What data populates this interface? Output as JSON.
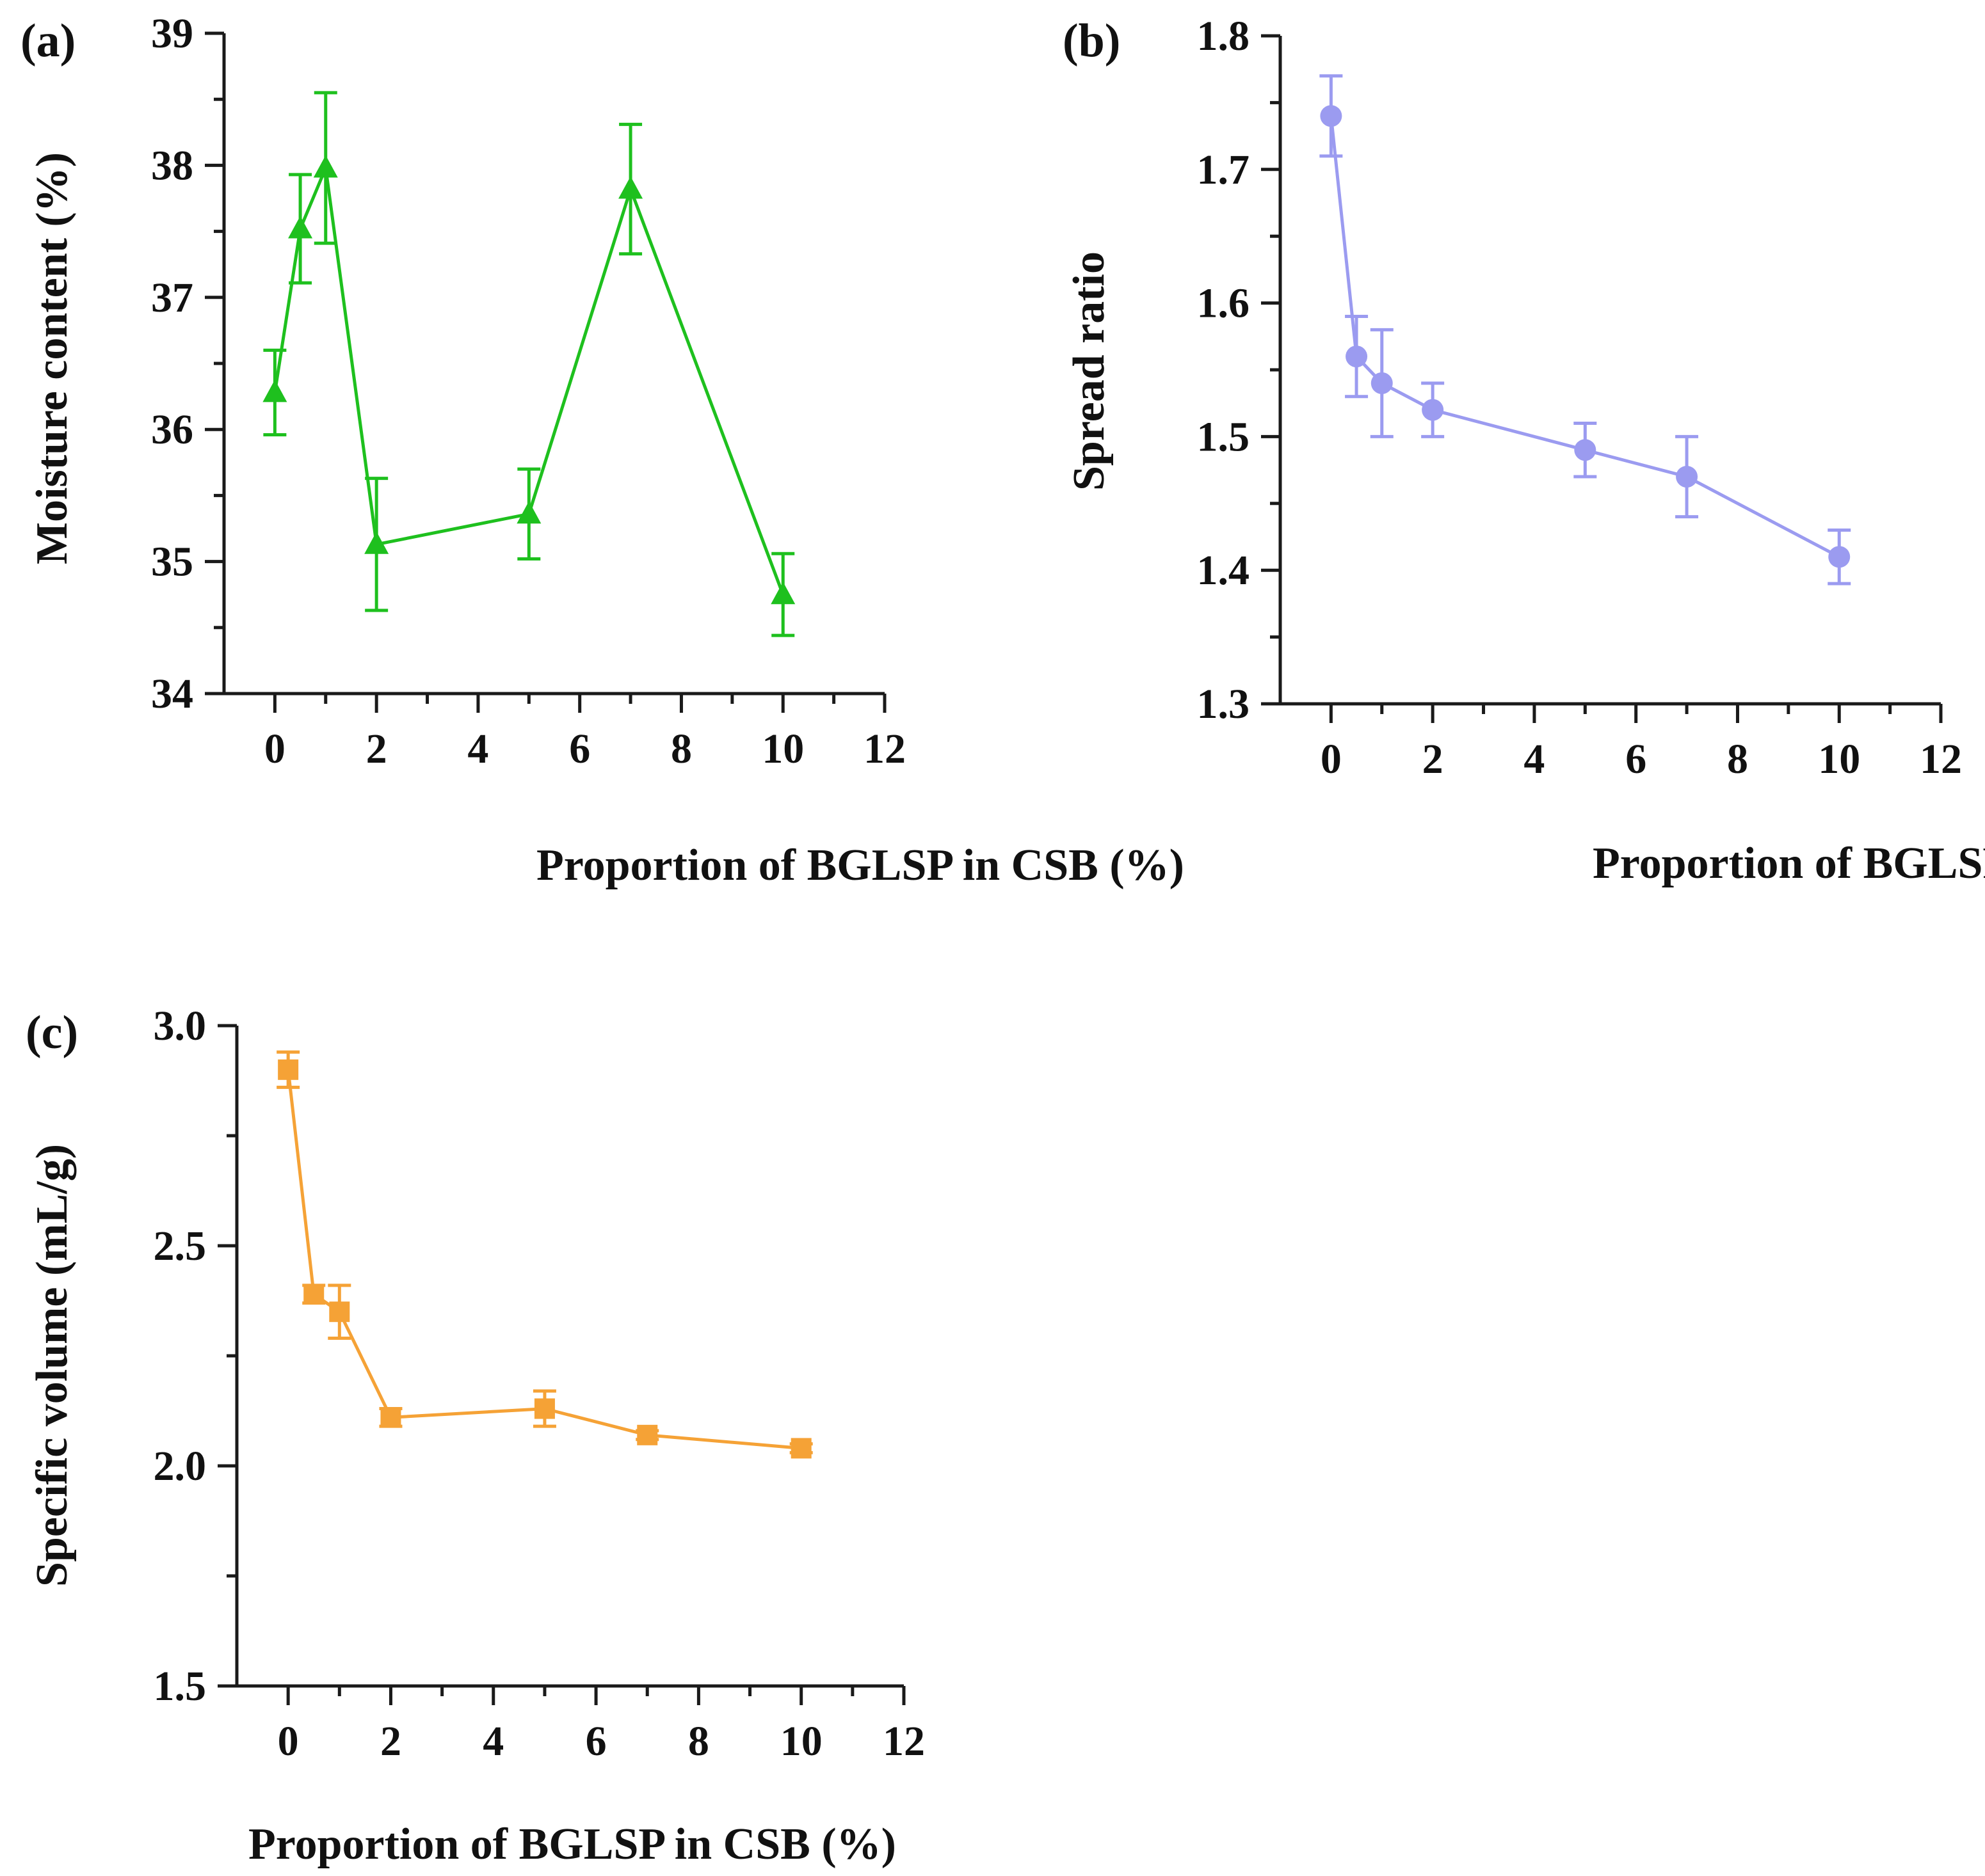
{
  "figure": {
    "panels": [
      {
        "label": "(a)"
      },
      {
        "label": "(b)"
      },
      {
        "label": "(c)"
      }
    ]
  },
  "chart_data": [
    {
      "id": "a",
      "type": "line",
      "panel_label": "(a)",
      "title": "",
      "xlabel": "Proportion of BGLSP in CSB (%)",
      "ylabel": "Moisture content (%)",
      "xlim": [
        -1,
        12
      ],
      "ylim": [
        34,
        39
      ],
      "xticks": [
        0,
        2,
        4,
        6,
        8,
        10,
        12
      ],
      "yticks": [
        34,
        35,
        36,
        37,
        38,
        39
      ],
      "xtick_labels": [
        "0",
        "2",
        "4",
        "6",
        "8",
        "10",
        "12"
      ],
      "ytick_labels": [
        "34",
        "35",
        "36",
        "37",
        "38",
        "39"
      ],
      "y_minor_step": 0.5,
      "marker": "triangle",
      "color": "#1ec01e",
      "series": [
        {
          "name": "Moisture content",
          "x": [
            0,
            0.5,
            1,
            2,
            5,
            7,
            10
          ],
          "values": [
            36.28,
            37.52,
            37.98,
            35.13,
            35.36,
            37.82,
            34.75
          ],
          "error": [
            0.32,
            0.41,
            0.57,
            0.5,
            0.34,
            0.49,
            0.31
          ]
        }
      ]
    },
    {
      "id": "b",
      "type": "line",
      "panel_label": "(b)",
      "title": "",
      "xlabel": "Proportion of BGLSP in CSB (%)",
      "ylabel": "Spread ratio",
      "xlim": [
        -1,
        12
      ],
      "ylim": [
        1.3,
        1.8
      ],
      "xticks": [
        0,
        2,
        4,
        6,
        8,
        10,
        12
      ],
      "yticks": [
        1.3,
        1.4,
        1.5,
        1.6,
        1.7,
        1.8
      ],
      "xtick_labels": [
        "0",
        "2",
        "4",
        "6",
        "8",
        "10",
        "12"
      ],
      "ytick_labels": [
        "1.3",
        "1.4",
        "1.5",
        "1.6",
        "1.7",
        "1.8"
      ],
      "y_minor_step": 0.05,
      "marker": "circle",
      "color": "#9b9bf0",
      "series": [
        {
          "name": "Spread ratio",
          "x": [
            0,
            0.5,
            1,
            2,
            5,
            7,
            10
          ],
          "values": [
            1.74,
            1.56,
            1.54,
            1.52,
            1.49,
            1.47,
            1.41
          ],
          "error": [
            0.03,
            0.03,
            0.04,
            0.02,
            0.02,
            0.03,
            0.02
          ]
        }
      ]
    },
    {
      "id": "c",
      "type": "line",
      "panel_label": "(c)",
      "title": "",
      "xlabel": "Proportion of BGLSP in CSB (%)",
      "ylabel": "Specific volume (mL/g)",
      "xlim": [
        -1,
        12
      ],
      "ylim": [
        1.5,
        3.0
      ],
      "xticks": [
        0,
        2,
        4,
        6,
        8,
        10,
        12
      ],
      "yticks": [
        1.5,
        2.0,
        2.5,
        3.0
      ],
      "xtick_labels": [
        "0",
        "2",
        "4",
        "6",
        "8",
        "10",
        "12"
      ],
      "ytick_labels": [
        "1.5",
        "2.0",
        "2.5",
        "3.0"
      ],
      "y_minor_step": 0.25,
      "marker": "square",
      "color": "#f5a236",
      "series": [
        {
          "name": "Specific volume",
          "x": [
            0,
            0.5,
            1,
            2,
            5,
            7,
            10
          ],
          "values": [
            2.9,
            2.39,
            2.35,
            2.11,
            2.13,
            2.07,
            2.04
          ],
          "error": [
            0.04,
            0.02,
            0.06,
            0.02,
            0.04,
            0.01,
            0.01
          ]
        }
      ]
    }
  ]
}
